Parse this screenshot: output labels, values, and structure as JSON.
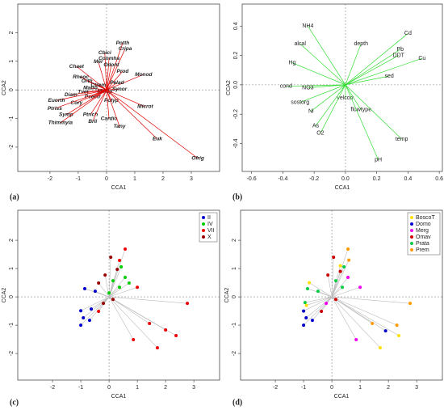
{
  "chart_data": [
    {
      "type": "biplot",
      "caption": "(a)",
      "xlabel": "CCA1",
      "ylabel": "CCA2",
      "xlim": [
        -3.14,
        4.0
      ],
      "ylim": [
        -2.85,
        3.0
      ],
      "xticks": [
        -2,
        -1,
        0,
        1,
        2,
        3
      ],
      "yticks": [
        -2,
        -1,
        0,
        1,
        2
      ],
      "color": "#e00000",
      "label_color": "#000000",
      "labels": [
        "Potth",
        "Cripa",
        "Cbici",
        "Conmha",
        "Mer",
        "Odont",
        "Chaet",
        "Prod",
        "Monod",
        "Rheoc",
        "Orth",
        "Ctrem",
        "Pelad",
        "Matro",
        "Synor",
        "Tvet",
        "Mikdp",
        "Diam",
        "Psectr",
        "Polyp",
        "Euorth",
        "Cory",
        "Microt",
        "Ptriss",
        "Symp",
        "Ptrich",
        "Cardio",
        "Thimmyia",
        "Brli",
        "Tany",
        "Euk",
        "Ofrig"
      ],
      "x": [
        0.57,
        0.66,
        -0.06,
        0.09,
        -0.29,
        0.17,
        -1.06,
        0.57,
        1.31,
        -0.91,
        -0.69,
        -0.29,
        0.37,
        -0.57,
        0.46,
        -0.83,
        -0.06,
        -1.26,
        -0.49,
        0.17,
        -1.77,
        -1.06,
        1.37,
        -1.83,
        -1.43,
        -0.57,
        0.09,
        -1.63,
        -0.49,
        0.46,
        1.8,
        3.23
      ],
      "y": [
        1.63,
        1.44,
        1.3,
        1.1,
        0.99,
        0.87,
        0.82,
        0.65,
        0.54,
        0.45,
        0.31,
        0.17,
        0.25,
        0.06,
        0.03,
        -0.08,
        -0.06,
        -0.17,
        -0.25,
        -0.37,
        -0.37,
        -0.45,
        -0.59,
        -0.65,
        -0.87,
        -0.87,
        -1.01,
        -1.15,
        -1.1,
        -1.27,
        -1.72,
        -2.39
      ]
    },
    {
      "type": "biplot",
      "caption": "(b)",
      "xlabel": "CCA1",
      "ylabel": "CCA2",
      "xlim": [
        -0.66,
        0.62
      ],
      "ylim": [
        -0.59,
        0.55
      ],
      "xticks": [
        {
          "value": -0.6,
          "label": "-0.6"
        },
        {
          "value": -0.4,
          "label": "-0.4"
        },
        {
          "value": -0.2,
          "label": "-0.2"
        },
        {
          "value": 0,
          "label": "0.0"
        },
        {
          "value": 0.2,
          "label": "0.2"
        },
        {
          "value": 0.4,
          "label": "0.4"
        },
        {
          "value": 0.6,
          "label": "0.6"
        }
      ],
      "yticks": [
        {
          "value": -0.4,
          "label": "-0.4"
        },
        {
          "value": -0.2,
          "label": "-0.2"
        },
        {
          "value": 0,
          "label": "0.0"
        },
        {
          "value": 0.2,
          "label": "0.2"
        },
        {
          "value": 0.4,
          "label": "0.4"
        }
      ],
      "color": "#33dd33",
      "label_color": "#1a1acc",
      "labels": [
        "NH4",
        "Cd",
        "alcal",
        "depth",
        "Pb",
        "DDT",
        "Cu",
        "Hg",
        "sed",
        "cond",
        "NO3",
        "velcorr",
        "sostorg",
        "flowtype",
        "Ni",
        "As",
        "O2",
        "temp",
        "pH"
      ],
      "x": [
        -0.24,
        0.4,
        -0.29,
        0.1,
        0.35,
        0.34,
        0.49,
        -0.34,
        0.28,
        -0.38,
        -0.24,
        0.0,
        -0.29,
        0.1,
        -0.22,
        -0.19,
        -0.16,
        0.36,
        0.21
      ],
      "y": [
        0.4,
        0.35,
        0.28,
        0.28,
        0.24,
        0.2,
        0.18,
        0.15,
        0.06,
        -0.01,
        -0.02,
        -0.09,
        -0.12,
        -0.17,
        -0.18,
        -0.28,
        -0.33,
        -0.37,
        -0.51
      ]
    },
    {
      "type": "scatter",
      "caption": "(c)",
      "xlabel": "CCA1",
      "ylabel": "CCA2",
      "xlim": [
        -3.23,
        3.91
      ],
      "ylim": [
        -2.94,
        3.06
      ],
      "xticks": [
        -2,
        -1,
        0,
        1,
        2,
        3
      ],
      "yticks": [
        -2,
        -1,
        0,
        1,
        2
      ],
      "line_color": "#bbbbbb",
      "legend": "upper right",
      "series": [
        {
          "name": "II",
          "color": "#0000cc",
          "x": [
            -1.0,
            -0.91,
            -1.0,
            -0.69,
            -0.86,
            -0.49,
            -0.63
          ],
          "y": [
            -0.49,
            -0.74,
            -1.0,
            -0.83,
            0.29,
            0.2,
            -0.43
          ]
        },
        {
          "name": "IV",
          "color": "#00cc00",
          "x": [
            0.43,
            0.57,
            0.37,
            0.71,
            0.14,
            0.0
          ],
          "y": [
            1.06,
            0.69,
            0.34,
            0.49,
            0.57,
            0.14
          ]
        },
        {
          "name": "VII",
          "color": "#ee0000",
          "x": [
            0.57,
            1.0,
            2.77,
            2.37,
            2.0,
            1.43,
            1.71,
            0.86,
            -0.37,
            0.37
          ],
          "y": [
            1.69,
            0.34,
            -0.23,
            -1.37,
            -1.17,
            -0.94,
            -1.8,
            -1.51,
            -0.51,
            1.29
          ]
        },
        {
          "name": "X",
          "color": "#990000",
          "x": [
            0.06,
            0.29,
            -0.14,
            -0.37,
            -0.2,
            0.14
          ],
          "y": [
            1.4,
            0.97,
            0.77,
            0.49,
            -0.23,
            -0.09
          ]
        }
      ]
    },
    {
      "type": "scatter",
      "caption": "(d)",
      "xlabel": "CCA1",
      "ylabel": "CCA2",
      "xlim": [
        -3.23,
        3.91
      ],
      "ylim": [
        -2.94,
        3.06
      ],
      "xticks": [
        -2,
        -1,
        0,
        1,
        2,
        3
      ],
      "yticks": [
        -2,
        -1,
        0,
        1,
        2
      ],
      "line_color": "#bbbbbb",
      "legend": "upper right",
      "series": [
        {
          "name": "BoscoT",
          "color": "#ffe000",
          "x": [
            -0.8,
            0.3,
            2.37,
            1.71,
            -0.9
          ],
          "y": [
            0.5,
            1.1,
            -1.37,
            -1.8,
            -0.3
          ]
        },
        {
          "name": "Domo",
          "color": "#0000cc",
          "x": [
            -1.0,
            -0.91,
            -0.69,
            1.9,
            -1.0
          ],
          "y": [
            -1.0,
            -0.74,
            -0.83,
            -1.2,
            -0.5
          ]
        },
        {
          "name": "Merg",
          "color": "#ee00ee",
          "x": [
            0.57,
            1.0,
            0.86,
            -0.2
          ],
          "y": [
            0.69,
            0.34,
            -1.51,
            -0.23
          ]
        },
        {
          "name": "Omav",
          "color": "#cc0000",
          "x": [
            0.06,
            -0.14,
            -0.37,
            0.14,
            0.3
          ],
          "y": [
            1.4,
            0.77,
            -0.51,
            -0.09,
            0.9
          ]
        },
        {
          "name": "Prata",
          "color": "#00cc44",
          "x": [
            0.37,
            0.14,
            -0.86,
            -0.49,
            0.43,
            -0.95
          ],
          "y": [
            0.34,
            0.57,
            0.29,
            0.2,
            1.06,
            -0.2
          ]
        },
        {
          "name": "Prem",
          "color": "#ff9900",
          "x": [
            0.57,
            2.77,
            1.43,
            0.6,
            2.3
          ],
          "y": [
            1.69,
            -0.23,
            -0.94,
            1.3,
            -1.0
          ]
        }
      ]
    }
  ]
}
